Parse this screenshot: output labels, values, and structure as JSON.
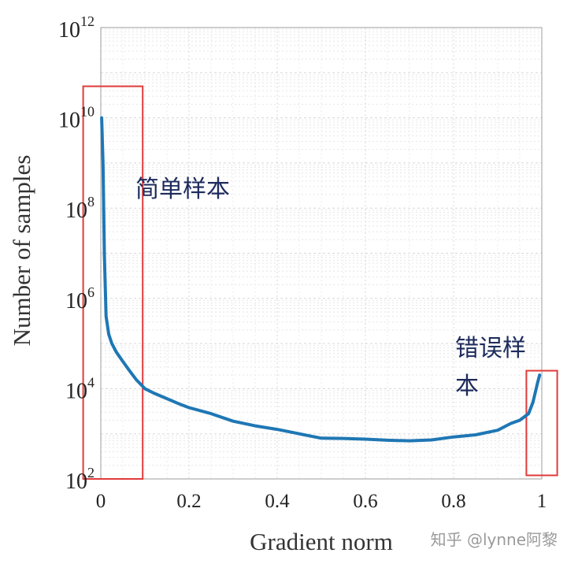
{
  "chart_data": {
    "type": "line",
    "xlabel": "Gradient norm",
    "ylabel": "Number of samples",
    "xlim": [
      0,
      1
    ],
    "ylim": [
      100,
      1000000000000
    ],
    "y_scale": "log",
    "grid": true,
    "x_ticks": [
      {
        "value": 0,
        "label": "0"
      },
      {
        "value": 0.2,
        "label": "0.2"
      },
      {
        "value": 0.4,
        "label": "0.4"
      },
      {
        "value": 0.6,
        "label": "0.6"
      },
      {
        "value": 0.8,
        "label": "0.8"
      },
      {
        "value": 1,
        "label": "1"
      }
    ],
    "y_ticks": [
      {
        "value": 100,
        "base": "10",
        "exp": "2"
      },
      {
        "value": 10000,
        "base": "10",
        "exp": "4"
      },
      {
        "value": 1000000,
        "base": "10",
        "exp": "6"
      },
      {
        "value": 100000000,
        "base": "10",
        "exp": "8"
      },
      {
        "value": 10000000000,
        "base": "10",
        "exp": "10"
      },
      {
        "value": 1000000000000,
        "base": "10",
        "exp": "12"
      }
    ],
    "series": [
      {
        "color": "#1f77b4",
        "x": [
          0.002,
          0.005,
          0.008,
          0.012,
          0.018,
          0.025,
          0.035,
          0.05,
          0.065,
          0.08,
          0.1,
          0.12,
          0.15,
          0.18,
          0.2,
          0.25,
          0.3,
          0.35,
          0.4,
          0.45,
          0.5,
          0.55,
          0.6,
          0.65,
          0.7,
          0.75,
          0.8,
          0.85,
          0.9,
          0.93,
          0.95,
          0.97,
          0.98,
          0.99,
          0.995
        ],
        "y": [
          10000000000,
          1000000000,
          10000000,
          400000,
          160000,
          100000,
          65000,
          40000,
          25000,
          16000,
          10000,
          8000,
          6000,
          4500,
          3800,
          2800,
          1900,
          1500,
          1250,
          1000,
          800,
          790,
          760,
          720,
          700,
          730,
          850,
          950,
          1200,
          1700,
          2000,
          2800,
          5000,
          13000,
          20000
        ]
      }
    ],
    "annotations": [
      {
        "text": "简单样本"
      },
      {
        "text": "错误样"
      },
      {
        "text": "本"
      }
    ],
    "highlight_boxes": [
      {
        "x0": -0.04,
        "x1": 0.095,
        "y0": 100,
        "y1": 50000000000,
        "color": "#e03b3b"
      },
      {
        "x0": 0.965,
        "x1": 1.035,
        "y0": 120,
        "y1": 25000,
        "color": "#e03b3b"
      }
    ]
  },
  "watermark": "知乎 @lynne阿黎"
}
